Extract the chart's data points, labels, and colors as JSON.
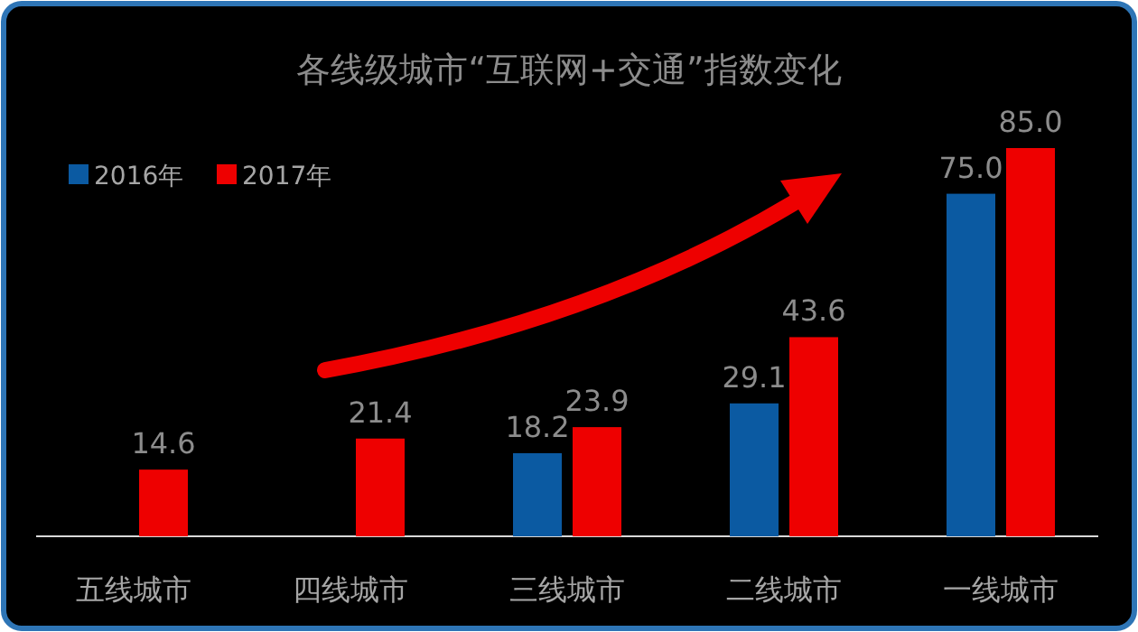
{
  "chart_data": {
    "type": "bar",
    "title": "各线级城市“互联网+交通”指数变化",
    "categories": [
      "五线城市",
      "四线城市",
      "三线城市",
      "二线城市",
      "一线城市"
    ],
    "series": [
      {
        "name": "2016年",
        "color": "#0b5aa2",
        "values": [
          null,
          null,
          18.2,
          29.1,
          75.0
        ],
        "value_labels": [
          null,
          null,
          "18.2",
          "29.1",
          "75.0"
        ]
      },
      {
        "name": "2017年",
        "color": "#ee0000",
        "values": [
          14.6,
          21.4,
          23.9,
          43.6,
          85.0
        ],
        "value_labels": [
          "14.6",
          "21.4",
          "23.9",
          "43.6",
          "85.0"
        ]
      }
    ],
    "legend": "top left"
  }
}
